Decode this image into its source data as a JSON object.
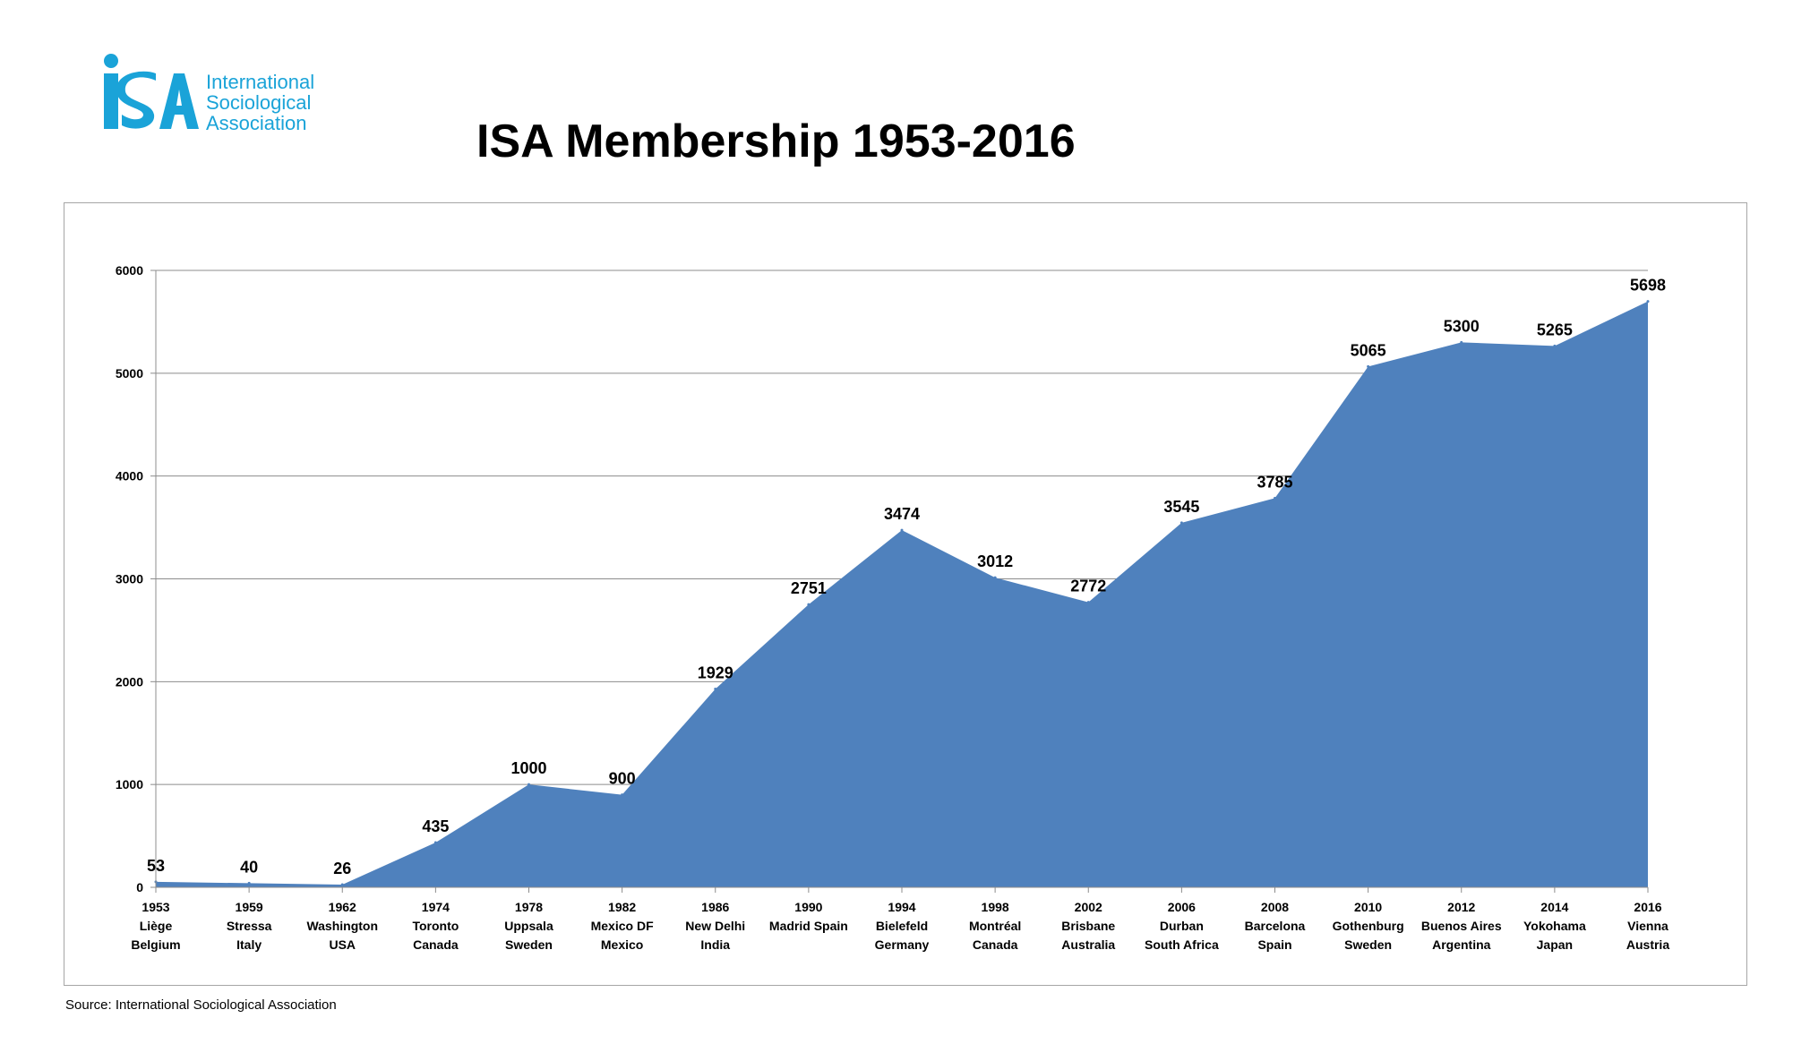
{
  "logo": {
    "mark": "ISA",
    "lines": [
      "International",
      "Sociological",
      "Association"
    ],
    "color": "#1aa3d8"
  },
  "chart_data": {
    "type": "area",
    "title": "ISA Membership 1953-2016",
    "xlabel": "",
    "ylabel": "",
    "ylim": [
      0,
      6000
    ],
    "yticks": [
      0,
      1000,
      2000,
      3000,
      4000,
      5000,
      6000
    ],
    "grid": true,
    "legend": "none",
    "fill_color": "#4f81bd",
    "categories": [
      {
        "year": "1953",
        "city": "Liège",
        "country": "Belgium"
      },
      {
        "year": "1959",
        "city": "Stressa",
        "country": "Italy"
      },
      {
        "year": "1962",
        "city": "Washington",
        "country": "USA"
      },
      {
        "year": "1974",
        "city": "Toronto",
        "country": "Canada"
      },
      {
        "year": "1978",
        "city": "Uppsala",
        "country": "Sweden"
      },
      {
        "year": "1982",
        "city": "Mexico DF",
        "country": "Mexico"
      },
      {
        "year": "1986",
        "city": "New Delhi",
        "country": "India"
      },
      {
        "year": "1990",
        "city": "Madrid Spain",
        "country": ""
      },
      {
        "year": "1994",
        "city": "Bielefeld",
        "country": "Germany"
      },
      {
        "year": "1998",
        "city": "Montréal",
        "country": "Canada"
      },
      {
        "year": "2002",
        "city": "Brisbane",
        "country": "Australia"
      },
      {
        "year": "2006",
        "city": "Durban",
        "country": "South Africa"
      },
      {
        "year": "2008",
        "city": "Barcelona",
        "country": "Spain"
      },
      {
        "year": "2010",
        "city": "Gothenburg",
        "country": "Sweden"
      },
      {
        "year": "2012",
        "city": "Buenos Aires",
        "country": "Argentina"
      },
      {
        "year": "2014",
        "city": "Yokohama",
        "country": "Japan"
      },
      {
        "year": "2016",
        "city": "Vienna",
        "country": "Austria"
      }
    ],
    "values": [
      53,
      40,
      26,
      435,
      1000,
      900,
      1929,
      2751,
      3474,
      3012,
      2772,
      3545,
      3785,
      5065,
      5300,
      5265,
      5698
    ]
  },
  "source": "Source: International Sociological Association"
}
